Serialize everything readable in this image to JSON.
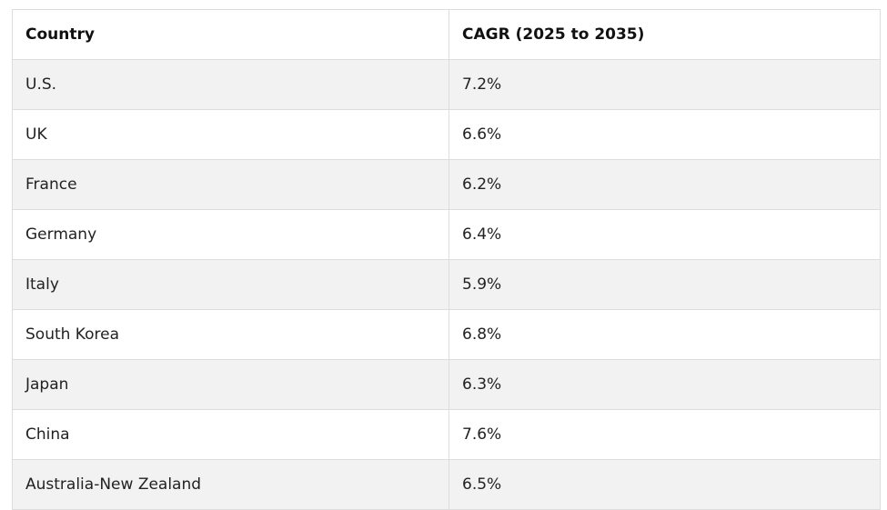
{
  "table": {
    "headers": [
      "Country",
      "CAGR (2025 to 2035)"
    ],
    "rows": [
      {
        "country": "U.S.",
        "cagr": "7.2%"
      },
      {
        "country": "UK",
        "cagr": "6.6%"
      },
      {
        "country": "France",
        "cagr": "6.2%"
      },
      {
        "country": "Germany",
        "cagr": "6.4%"
      },
      {
        "country": "Italy",
        "cagr": "5.9%"
      },
      {
        "country": "South Korea",
        "cagr": "6.8%"
      },
      {
        "country": "Japan",
        "cagr": "6.3%"
      },
      {
        "country": "China",
        "cagr": "7.6%"
      },
      {
        "country": "Australia-New Zealand",
        "cagr": "6.5%"
      }
    ]
  }
}
